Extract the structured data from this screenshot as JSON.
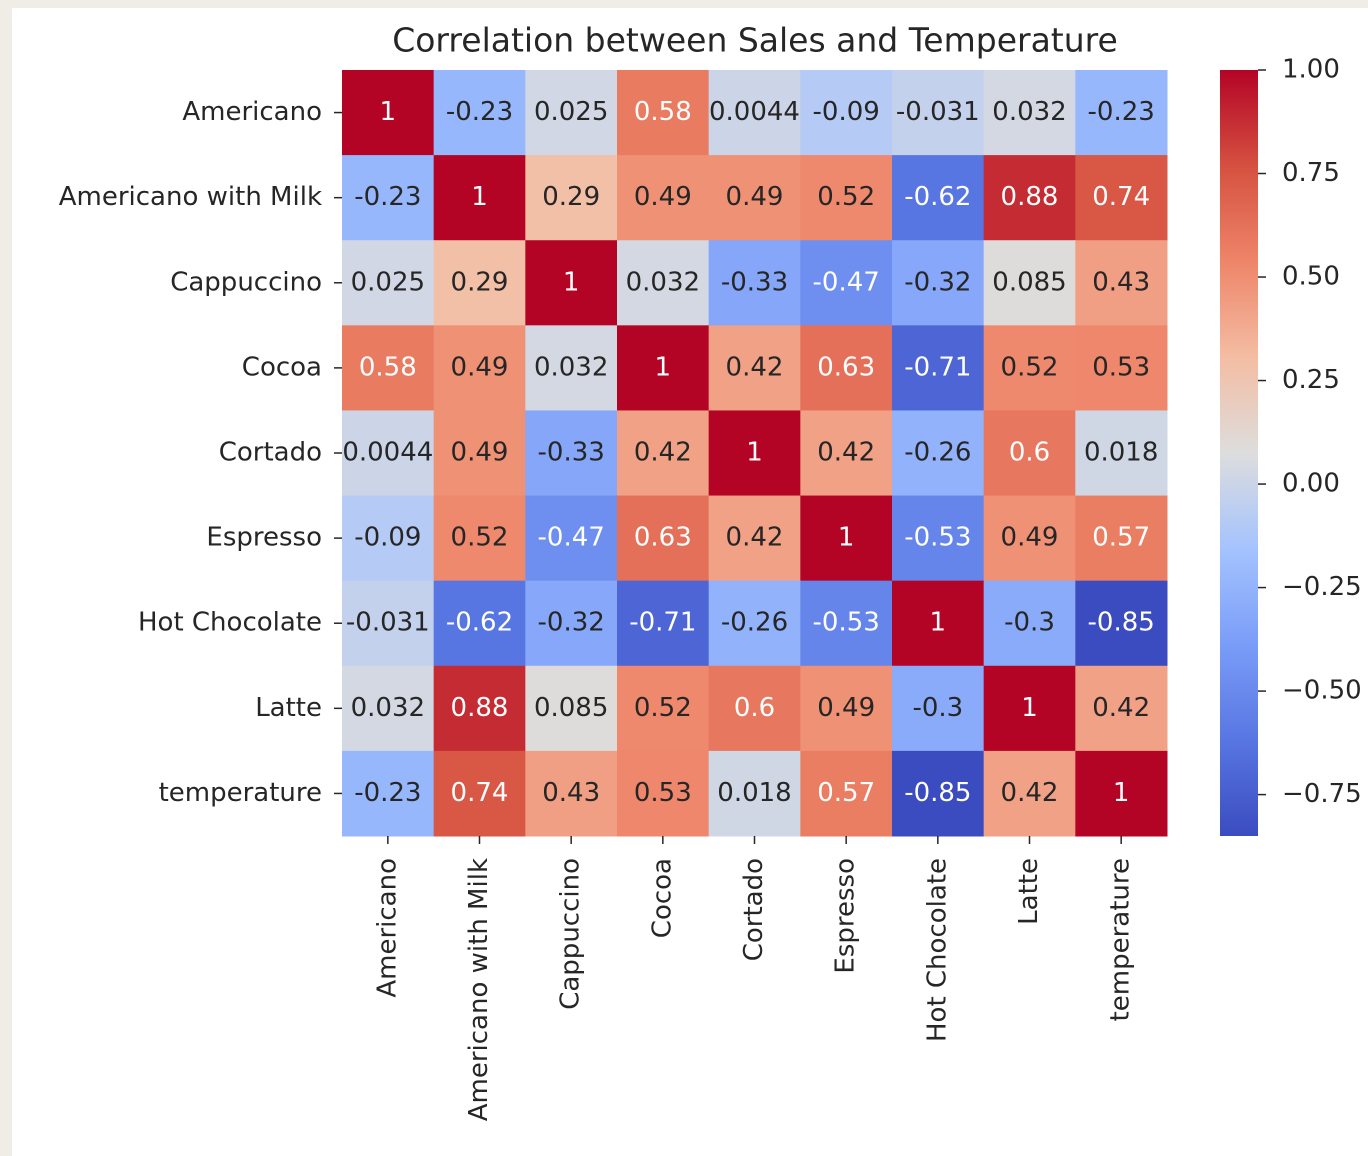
{
  "chart_data": {
    "type": "heatmap",
    "title": "Correlation between Sales and Temperature",
    "categories": [
      "Americano",
      "Americano with Milk",
      "Cappuccino",
      "Cocoa",
      "Cortado",
      "Espresso",
      "Hot Chocolate",
      "Latte",
      "temperature"
    ],
    "z": [
      [
        1,
        -0.23,
        0.025,
        0.58,
        0.0044,
        -0.09,
        -0.031,
        0.032,
        -0.23
      ],
      [
        -0.23,
        1,
        0.29,
        0.49,
        0.49,
        0.52,
        -0.62,
        0.88,
        0.74
      ],
      [
        0.025,
        0.29,
        1,
        0.032,
        -0.33,
        -0.47,
        -0.32,
        0.085,
        0.43
      ],
      [
        0.58,
        0.49,
        0.032,
        1,
        0.42,
        0.63,
        -0.71,
        0.52,
        0.53
      ],
      [
        0.0044,
        0.49,
        -0.33,
        0.42,
        1,
        0.42,
        -0.26,
        0.6,
        0.018
      ],
      [
        -0.09,
        0.52,
        -0.47,
        0.63,
        0.42,
        1,
        -0.53,
        0.49,
        0.57
      ],
      [
        -0.031,
        -0.62,
        -0.32,
        -0.71,
        -0.26,
        -0.53,
        1,
        -0.3,
        -0.85
      ],
      [
        0.032,
        0.88,
        0.085,
        0.52,
        0.6,
        0.49,
        -0.3,
        1,
        0.42
      ],
      [
        -0.23,
        0.74,
        0.43,
        0.53,
        0.018,
        0.57,
        -0.85,
        0.42,
        1
      ]
    ],
    "colormap": "coolwarm",
    "clim": [
      -0.85,
      1
    ],
    "cticks": [
      {
        "value": 1,
        "label": "1.00"
      },
      {
        "value": 0.75,
        "label": "0.75"
      },
      {
        "value": 0.5,
        "label": "0.50"
      },
      {
        "value": 0.25,
        "label": "0.25"
      },
      {
        "value": 0,
        "label": "0.00"
      },
      {
        "value": -0.25,
        "label": "−0.25"
      },
      {
        "value": -0.5,
        "label": "−0.50"
      },
      {
        "value": -0.75,
        "label": "−0.75"
      }
    ]
  }
}
